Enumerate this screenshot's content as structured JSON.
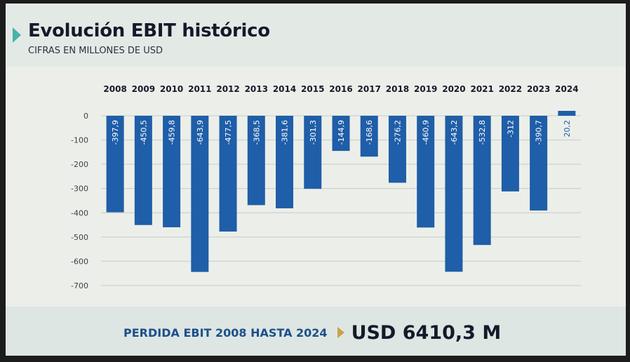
{
  "header": {
    "title": "Evolución EBIT histórico",
    "subtitle": "CIFRAS EN MILLONES DE USD"
  },
  "footer": {
    "label": "PERDIDA EBIT 2008 HASTA 2024",
    "value": "USD 6410,3 M"
  },
  "colors": {
    "bar": "#1f5ea8",
    "accent": "#49b3a9",
    "arrow": "#c8a24a"
  },
  "chart_data": {
    "type": "bar",
    "title": "Evolución EBIT histórico",
    "subtitle": "CIFRAS EN MILLONES DE USD",
    "categories": [
      "2008",
      "2009",
      "2010",
      "2011",
      "2012",
      "2013",
      "2014",
      "2015",
      "2016",
      "2017",
      "2018",
      "2019",
      "2020",
      "2021",
      "2022",
      "2023",
      "2024"
    ],
    "values": [
      -397.9,
      -450.5,
      -459.8,
      -643.9,
      -477.5,
      -368.5,
      -381.6,
      -301.3,
      -144.9,
      -168.6,
      -276.2,
      -460.9,
      -643.2,
      -532.8,
      -312,
      -390.7,
      20.2
    ],
    "data_labels": [
      "-397,9",
      "-450,5",
      "-459,8",
      "-643,9",
      "-477,5",
      "-368,5",
      "-381,6",
      "-301,3",
      "-144,9",
      "-168,6",
      "-276,2",
      "-460,9",
      "-643,2",
      "-532,8",
      "-312",
      "-390,7",
      "20,2"
    ],
    "yticks": [
      0,
      -100,
      -200,
      -300,
      -400,
      -500,
      -600,
      -700
    ],
    "ytick_labels": [
      "0",
      "-100",
      "-200",
      "-300",
      "-400",
      "-500",
      "-600",
      "-700"
    ],
    "ylim": [
      -700,
      0
    ],
    "xlabel": "",
    "ylabel": "",
    "grid": true,
    "x_labels_position": "top"
  }
}
